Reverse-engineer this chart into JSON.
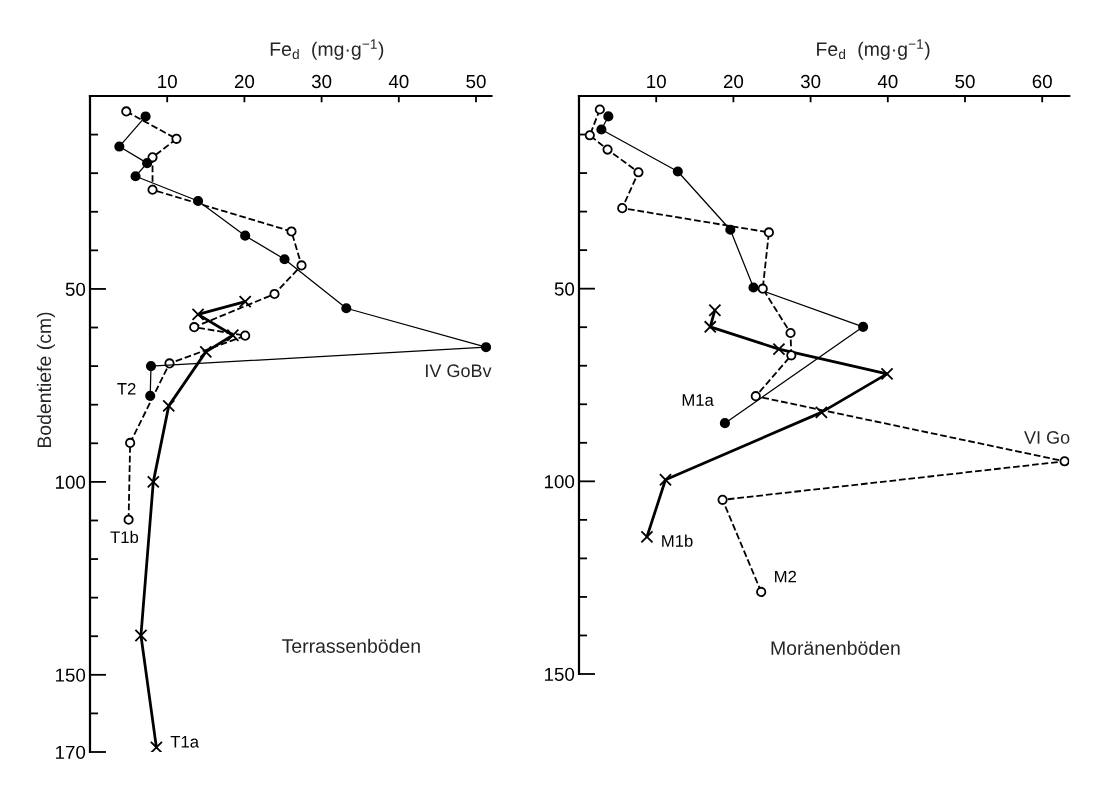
{
  "chart_data": [
    {
      "type": "line",
      "xlabel": "Fe$_{d}$  (mg·g$^{−1}$)",
      "ylabel": "Bodentiefe (cm)",
      "xlim": [
        0,
        52
      ],
      "xticks": [
        10,
        20,
        30,
        40,
        50
      ],
      "ylim": [
        170,
        0
      ],
      "yticks": [
        {
          "value": 10,
          "label": null
        },
        {
          "value": 20,
          "label": null
        },
        {
          "value": 30,
          "label": null
        },
        {
          "value": 40,
          "label": null
        },
        50,
        {
          "value": 60,
          "label": null
        },
        {
          "value": 70,
          "label": null
        },
        {
          "value": 80,
          "label": null
        },
        {
          "value": 90,
          "label": null
        },
        100,
        {
          "value": 110,
          "label": null
        },
        {
          "value": 120,
          "label": null
        },
        {
          "value": 130,
          "label": null
        },
        {
          "value": 140,
          "label": null
        },
        150,
        {
          "value": 160,
          "label": null
        },
        170
      ],
      "series": [
        {
          "name": "T1a",
          "color": "#000000",
          "marker": "cross",
          "line_style": "solid",
          "x": [
            20.1,
            14.0,
            18.5,
            15.0,
            10.2,
            8.2,
            6.6,
            8.6
          ],
          "values": [
            53.3,
            56.6,
            62.0,
            66.3,
            80.3,
            100.0,
            139.8,
            168.8
          ]
        },
        {
          "name": "T1b",
          "color": "#000000",
          "marker": "circle",
          "line_style": "dashed",
          "x": [
            4.7,
            11.2,
            8.1,
            8.1,
            26.1,
            27.4,
            23.9,
            13.5,
            20.1,
            10.3,
            5.2,
            5.0
          ],
          "values": [
            4.0,
            11.1,
            15.9,
            24.3,
            35.1,
            43.9,
            51.3,
            59.9,
            62.1,
            69.3,
            89.9,
            109.8
          ]
        },
        {
          "name": "T2",
          "color": "#000000",
          "marker": "circle",
          "line_style": "solid",
          "x": [
            7.2,
            3.8,
            7.4,
            5.9,
            14.0,
            20.1,
            25.2,
            33.2,
            51.3,
            7.9,
            7.8
          ],
          "values": [
            5.3,
            13.1,
            17.4,
            20.8,
            27.2,
            36.2,
            42.3,
            55.0,
            65.1,
            70.0,
            77.7
          ]
        }
      ],
      "annotations": [
        "Terrassenböden",
        {
          "text": "IV GoBv",
          "x": 51.3,
          "y": 65.1
        }
      ]
    },
    {
      "type": "line",
      "xlabel": "Fe$_{d}$  (mg·g$^{−1}$)",
      "xlim": [
        0,
        63.5
      ],
      "xticks": [
        10,
        20,
        30,
        40,
        50,
        60
      ],
      "ylim": [
        150,
        0
      ],
      "yticks": [
        {
          "value": 10,
          "label": null
        },
        {
          "value": 20,
          "label": null
        },
        {
          "value": 30,
          "label": null
        },
        {
          "value": 40,
          "label": null
        },
        50,
        {
          "value": 60,
          "label": null
        },
        {
          "value": 70,
          "label": null
        },
        {
          "value": 80,
          "label": null
        },
        {
          "value": 90,
          "label": null
        },
        100,
        {
          "value": 110,
          "label": null
        },
        {
          "value": 120,
          "label": null
        },
        {
          "value": 130,
          "label": null
        },
        {
          "value": 140,
          "label": null
        },
        150
      ],
      "series": [
        {
          "name": "M1a",
          "color": "#000000",
          "marker": "circle",
          "line_style": "solid",
          "x": [
            3.8,
            2.9,
            12.8,
            19.6,
            22.6,
            36.8,
            18.9
          ],
          "values": [
            5.3,
            8.7,
            19.6,
            34.7,
            49.7,
            59.9,
            84.9
          ]
        },
        {
          "name": "M1b",
          "color": "#000000",
          "marker": "cross",
          "line_style": "solid",
          "x": [
            17.6,
            17.0,
            25.9,
            39.9,
            31.4,
            11.2,
            8.8
          ],
          "values": [
            55.6,
            59.9,
            65.7,
            72.1,
            82.1,
            99.6,
            114.4
          ]
        },
        {
          "name": "M2",
          "color": "#000000",
          "marker": "circle",
          "line_style": "dashed",
          "x": [
            2.7,
            1.4,
            3.7,
            7.7,
            5.6,
            24.6,
            23.8,
            27.4,
            27.5,
            22.9,
            62.9,
            18.6,
            23.6
          ],
          "values": [
            3.5,
            10.2,
            13.9,
            19.8,
            29.1,
            35.4,
            50.0,
            61.5,
            67.3,
            77.9,
            94.8,
            104.8,
            128.7
          ]
        }
      ],
      "annotations": [
        "Moränenböden",
        {
          "text": "VI Go",
          "x": 62.9,
          "y": 94.8
        }
      ]
    }
  ]
}
